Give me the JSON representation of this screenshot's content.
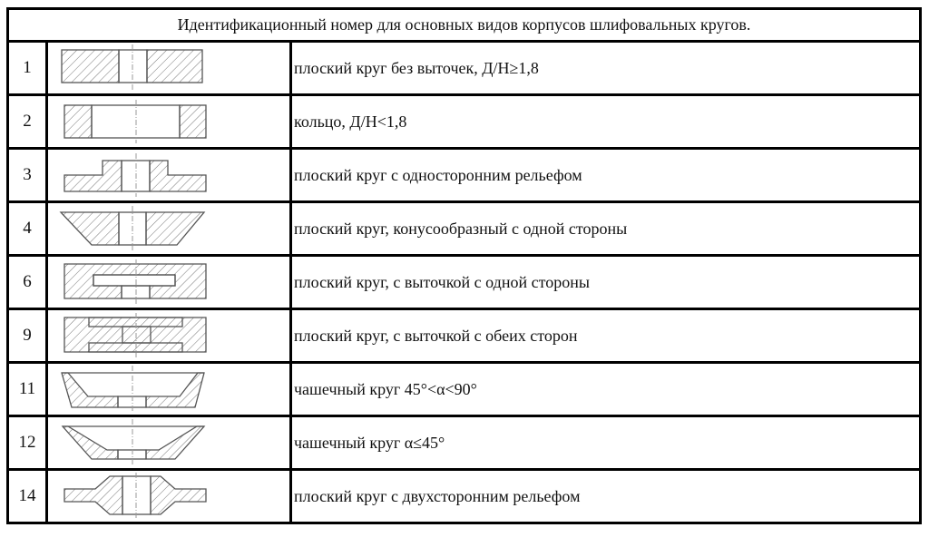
{
  "table": {
    "title": "Идентификационный номер для основных видов корпусов шлифовальных кругов.",
    "rows": [
      {
        "number": "1",
        "shape": "flat-wheel-icon",
        "description": "плоский круг без выточек, Д/Н≥1,8"
      },
      {
        "number": "2",
        "shape": "ring-icon",
        "description": "кольцо, Д/Н<1,8"
      },
      {
        "number": "3",
        "shape": "one-side-relief-icon",
        "description": "плоский круг с односторонним рельефом"
      },
      {
        "number": "4",
        "shape": "one-side-taper-icon",
        "description": "плоский круг, конусообразный с одной стороны"
      },
      {
        "number": "6",
        "shape": "one-side-recess-icon",
        "description": "плоский круг, с выточкой с одной стороны"
      },
      {
        "number": "9",
        "shape": "two-side-recess-icon",
        "description": "плоский круг, с выточкой с обеих сторон"
      },
      {
        "number": "11",
        "shape": "cup-wheel-icon",
        "description": "чашечный круг 45°<α<90°"
      },
      {
        "number": "12",
        "shape": "flat-cup-wheel-icon",
        "description": "чашечный круг α≤45°"
      },
      {
        "number": "14",
        "shape": "two-side-relief-icon",
        "description": "плоский круг с двухсторонним рельефом"
      }
    ]
  }
}
